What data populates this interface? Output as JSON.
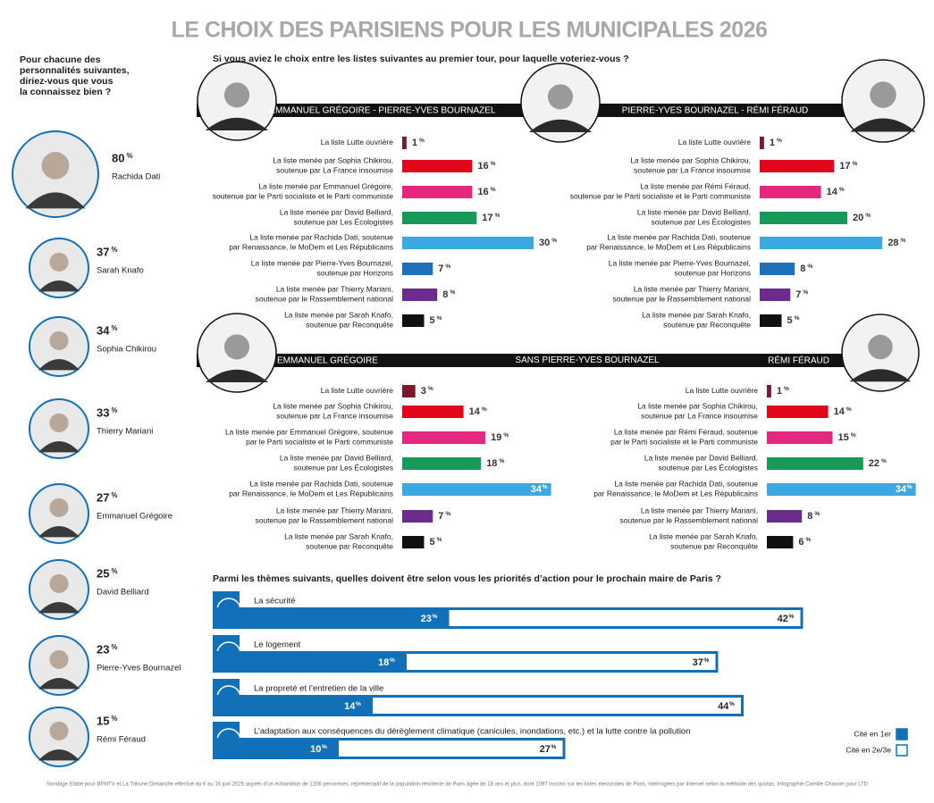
{
  "title": "LE CHOIX DES PARISIENS POUR LES MUNICIPALES 2026",
  "vote_question": "Si vous aviez le choix entre les listes suivantes au premier tour, pour laquelle voteriez-vous ?",
  "scenario_2_label": "SANS PIERRE-YVES BOURNAZEL",
  "footnote": "Sondage Elabe pour BFMTV et La Tribune Dimanche effectué du 6 au 16 juin 2025 auprès d’un échantillon de 1206 personnes, représentatif de la population résidente de Paris âgée de 18 ans et plus, dont 1097 inscrits sur les listes électorales de Paris, interrogées par Internet selon la méthode des quotas. Infographie Camille Chauvin pour LTD",
  "chart_data": [
    {
      "type": "ranking",
      "title": "Pour chacune des\npersonnalités suivantes,\ndiriez-vous que vous\nla connaissez bien ?",
      "unit": "%",
      "categories": [
        "Rachida Dati",
        "Sarah Knafo",
        "Sophia Chikirou",
        "Thierry Mariani",
        "Emmanuel Grégoire",
        "David Belliard",
        "Pierre-Yves Bournazel",
        "Rémi Féraud"
      ],
      "values": [
        80,
        37,
        34,
        33,
        27,
        25,
        23,
        15
      ]
    },
    {
      "type": "bar",
      "title": "EMMANUEL GRÉGOIRE - PIERRE-YVES BOURNAZEL",
      "unit": "%",
      "xlim": [
        0,
        35
      ],
      "categories": [
        "La liste Lutte ouvrière",
        "La liste menée par Sophia Chikirou,\nsoutenue par La France insoumise",
        "La liste menée par Emmanuel Grégoire,\nsoutenue par le Parti socialiste et le Parti communiste",
        "La liste menée par David Belliard,\nsoutenue par Les Écologistes",
        "La liste menée par Rachida Dati, soutenue\npar Renaissance, le MoDem et Les Républicains",
        "La liste menée par Pierre-Yves Bournazel,\nsoutenue par Horizons",
        "La liste menée par Thierry Mariani,\nsoutenue par le Rassemblement national",
        "La liste menée par Sarah Knafo,\nsoutenue par Reconquête"
      ],
      "values": [
        1,
        16,
        16,
        17,
        30,
        7,
        8,
        5
      ],
      "colors": [
        "#7a1a2c",
        "#e2061b",
        "#e5287f",
        "#17995a",
        "#3aa9e1",
        "#1e70b9",
        "#6b2c8e",
        "#111111"
      ]
    },
    {
      "type": "bar",
      "title": "PIERRE-YVES BOURNAZEL - RÉMI FÉRAUD",
      "unit": "%",
      "xlim": [
        0,
        35
      ],
      "categories": [
        "La liste Lutte ouvrière",
        "La liste menée par Sophia Chikirou,\nsoutenue par La France insoumise",
        "La liste menée par Rémi Féraud,\nsoutenue par le Parti socialiste et le Parti communiste",
        "La liste menée par David Belliard,\nsoutenue par Les Écologistes",
        "La liste menée par Rachida Dati, soutenue\npar Renaissance, le MoDem et Les Républicains",
        "La liste menée par Pierre-Yves Bournazel,\nsoutenue par Horizons",
        "La liste menée par Thierry Mariani,\nsoutenue par le Rassemblement national",
        "La liste menée par Sarah Knafo,\nsoutenue par Reconquête"
      ],
      "values": [
        1,
        17,
        14,
        20,
        28,
        8,
        7,
        5
      ],
      "colors": [
        "#7a1a2c",
        "#e2061b",
        "#e5287f",
        "#17995a",
        "#3aa9e1",
        "#1e70b9",
        "#6b2c8e",
        "#111111"
      ]
    },
    {
      "type": "bar",
      "title": "EMMANUEL GRÉGOIRE",
      "unit": "%",
      "xlim": [
        0,
        35
      ],
      "categories": [
        "La liste Lutte ouvrière",
        "La liste menée par Sophia Chikirou,\nsoutenue par La France insoumise",
        "La liste menée par Emmanuel Grégoire, soutenue\npar le Parti socialiste et le Parti communiste",
        "La liste menée par David Belliard,\nsoutenue par Les Écologistes",
        "La liste menée par Rachida Dati, soutenue\npar Renaissance, le MoDem et Les Républicains",
        "La liste menée par Thierry Mariani,\nsoutenue par le Rassemblement national",
        "La liste menée par Sarah Knafo,\nsoutenue par Reconquête"
      ],
      "values": [
        3,
        14,
        19,
        18,
        34,
        7,
        5
      ],
      "colors": [
        "#7a1a2c",
        "#e2061b",
        "#e5287f",
        "#17995a",
        "#3aa9e1",
        "#6b2c8e",
        "#111111"
      ]
    },
    {
      "type": "bar",
      "title": "RÉMI FÉRAUD",
      "unit": "%",
      "xlim": [
        0,
        35
      ],
      "categories": [
        "La liste Lutte ouvrière",
        "La liste menée par Sophia Chikirou,\nsoutenue par La France insoumise",
        "La liste menée par Rémi Féraud, soutenue\npar le Parti socialiste et le Parti communiste",
        "La liste menée par David Belliard,\nsoutenue par Les Écologistes",
        "La liste menée par Rachida Dati, soutenue\npar Renaissance, le MoDem et Les Républicains",
        "La liste menée par Thierry Mariani,\nsoutenue par le Rassemblement national",
        "La liste menée par Sarah Knafo,\nsoutenue par Reconquête"
      ],
      "values": [
        1,
        14,
        15,
        22,
        34,
        8,
        6
      ],
      "colors": [
        "#7a1a2c",
        "#e2061b",
        "#e5287f",
        "#17995a",
        "#3aa9e1",
        "#6b2c8e",
        "#111111"
      ]
    },
    {
      "type": "stacked_bar",
      "title": "Parmi les thèmes suivants, quelles doivent être selon vous les priorités d’action pour le prochain maire de Paris ?",
      "unit": "%",
      "xlim": [
        0,
        70
      ],
      "categories": [
        "La sécurité",
        "Le logement",
        "La propreté et l’entretien de la ville",
        "L’adaptation aux conséquences du dérèglement climatique (canicules, inondations, etc.) et la lutte contre la pollution"
      ],
      "series": [
        {
          "name": "Cité en 1er",
          "color": "#1170b8",
          "values": [
            23,
            18,
            14,
            10
          ]
        },
        {
          "name": "Cité en 2e/3e",
          "color": "#ffffff",
          "values": [
            42,
            37,
            44,
            27
          ]
        }
      ]
    }
  ]
}
